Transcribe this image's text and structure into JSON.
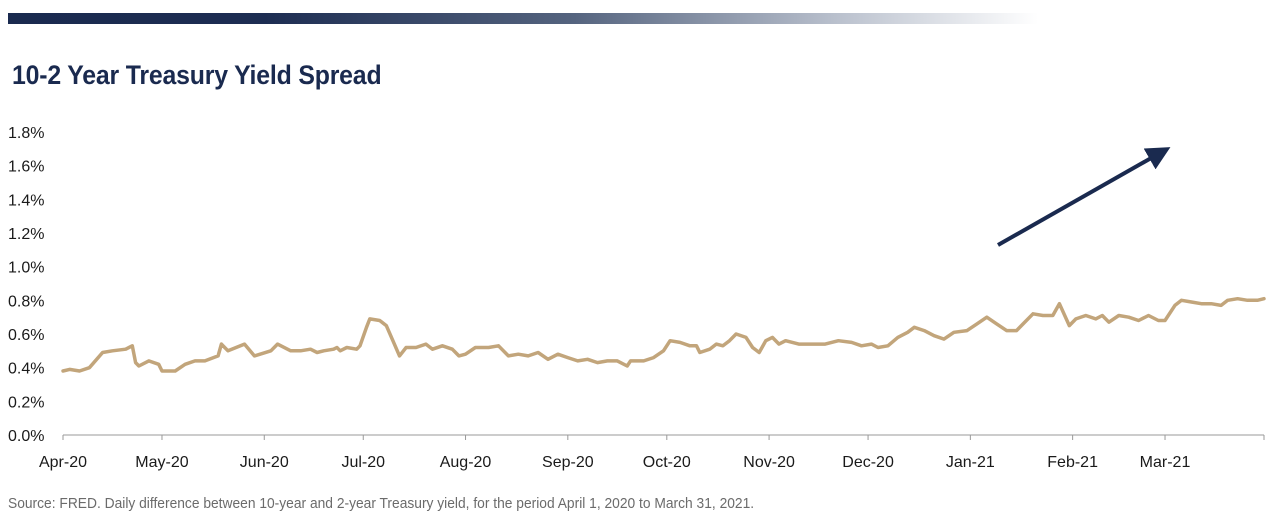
{
  "title": "10-2 Year Treasury Yield Spread",
  "source": "Source: FRED. Daily difference between 10-year and 2-year Treasury yield, for the period April 1, 2020 to March 31, 2021.",
  "colors": {
    "line": "#c2a57b",
    "arrow": "#1a2a4f",
    "title": "#1a2a4f",
    "axis": "#999999"
  },
  "chart_data": {
    "type": "line",
    "title": "10-2 Year Treasury Yield Spread",
    "xlabel": "",
    "ylabel": "",
    "ylim": [
      0,
      1.8
    ],
    "grid": false,
    "y_ticks": [
      "0.0%",
      "0.2%",
      "0.4%",
      "0.6%",
      "0.8%",
      "1.0%",
      "1.2%",
      "1.4%",
      "1.6%",
      "1.8%"
    ],
    "x_ticks": [
      {
        "label": "Apr-20",
        "date": "2020-04-01"
      },
      {
        "label": "May-20",
        "date": "2020-05-01"
      },
      {
        "label": "Jun-20",
        "date": "2020-06-01"
      },
      {
        "label": "Jul-20",
        "date": "2020-07-01"
      },
      {
        "label": "Aug-20",
        "date": "2020-08-01"
      },
      {
        "label": "Sep-20",
        "date": "2020-09-01"
      },
      {
        "label": "Oct-20",
        "date": "2020-10-01"
      },
      {
        "label": "Nov-20",
        "date": "2020-11-01"
      },
      {
        "label": "Dec-20",
        "date": "2020-12-01"
      },
      {
        "label": "Jan-21",
        "date": "2021-01-01"
      },
      {
        "label": "Feb-21",
        "date": "2021-02-01"
      },
      {
        "label": "Mar-21",
        "date": "2021-03-01"
      }
    ],
    "xlim": [
      "2020-04-01",
      "2021-03-31"
    ],
    "series": [
      {
        "values": [
          [
            "2020-04-01",
            0.38
          ],
          [
            "2020-04-03",
            0.39
          ],
          [
            "2020-04-06",
            0.38
          ],
          [
            "2020-04-09",
            0.4
          ],
          [
            "2020-04-13",
            0.49
          ],
          [
            "2020-04-16",
            0.5
          ],
          [
            "2020-04-20",
            0.51
          ],
          [
            "2020-04-22",
            0.53
          ],
          [
            "2020-04-23",
            0.43
          ],
          [
            "2020-04-24",
            0.41
          ],
          [
            "2020-04-27",
            0.44
          ],
          [
            "2020-04-30",
            0.42
          ],
          [
            "2020-05-01",
            0.38
          ],
          [
            "2020-05-05",
            0.38
          ],
          [
            "2020-05-08",
            0.42
          ],
          [
            "2020-05-11",
            0.44
          ],
          [
            "2020-05-14",
            0.44
          ],
          [
            "2020-05-18",
            0.47
          ],
          [
            "2020-05-19",
            0.54
          ],
          [
            "2020-05-21",
            0.5
          ],
          [
            "2020-05-26",
            0.54
          ],
          [
            "2020-05-29",
            0.47
          ],
          [
            "2020-06-03",
            0.5
          ],
          [
            "2020-06-05",
            0.54
          ],
          [
            "2020-06-09",
            0.5
          ],
          [
            "2020-06-12",
            0.5
          ],
          [
            "2020-06-15",
            0.51
          ],
          [
            "2020-06-17",
            0.49
          ],
          [
            "2020-06-19",
            0.5
          ],
          [
            "2020-06-22",
            0.51
          ],
          [
            "2020-06-23",
            0.52
          ],
          [
            "2020-06-24",
            0.5
          ],
          [
            "2020-06-26",
            0.52
          ],
          [
            "2020-06-29",
            0.51
          ],
          [
            "2020-06-30",
            0.53
          ],
          [
            "2020-07-02",
            0.64
          ],
          [
            "2020-07-03",
            0.69
          ],
          [
            "2020-07-06",
            0.68
          ],
          [
            "2020-07-08",
            0.65
          ],
          [
            "2020-07-10",
            0.56
          ],
          [
            "2020-07-12",
            0.47
          ],
          [
            "2020-07-14",
            0.52
          ],
          [
            "2020-07-17",
            0.52
          ],
          [
            "2020-07-20",
            0.54
          ],
          [
            "2020-07-22",
            0.51
          ],
          [
            "2020-07-25",
            0.53
          ],
          [
            "2020-07-28",
            0.51
          ],
          [
            "2020-07-30",
            0.47
          ],
          [
            "2020-08-01",
            0.48
          ],
          [
            "2020-08-04",
            0.52
          ],
          [
            "2020-08-08",
            0.52
          ],
          [
            "2020-08-11",
            0.53
          ],
          [
            "2020-08-14",
            0.47
          ],
          [
            "2020-08-17",
            0.48
          ],
          [
            "2020-08-20",
            0.47
          ],
          [
            "2020-08-23",
            0.49
          ],
          [
            "2020-08-26",
            0.45
          ],
          [
            "2020-08-29",
            0.48
          ],
          [
            "2020-09-01",
            0.46
          ],
          [
            "2020-09-04",
            0.44
          ],
          [
            "2020-09-07",
            0.45
          ],
          [
            "2020-09-10",
            0.43
          ],
          [
            "2020-09-13",
            0.44
          ],
          [
            "2020-09-16",
            0.44
          ],
          [
            "2020-09-19",
            0.41
          ],
          [
            "2020-09-20",
            0.44
          ],
          [
            "2020-09-24",
            0.44
          ],
          [
            "2020-09-27",
            0.46
          ],
          [
            "2020-09-30",
            0.5
          ],
          [
            "2020-10-02",
            0.56
          ],
          [
            "2020-10-05",
            0.55
          ],
          [
            "2020-10-08",
            0.53
          ],
          [
            "2020-10-10",
            0.53
          ],
          [
            "2020-10-11",
            0.49
          ],
          [
            "2020-10-14",
            0.51
          ],
          [
            "2020-10-16",
            0.54
          ],
          [
            "2020-10-18",
            0.53
          ],
          [
            "2020-10-20",
            0.56
          ],
          [
            "2020-10-22",
            0.6
          ],
          [
            "2020-10-25",
            0.58
          ],
          [
            "2020-10-27",
            0.52
          ],
          [
            "2020-10-29",
            0.49
          ],
          [
            "2020-10-31",
            0.56
          ],
          [
            "2020-11-02",
            0.58
          ],
          [
            "2020-11-04",
            0.54
          ],
          [
            "2020-11-06",
            0.56
          ],
          [
            "2020-11-10",
            0.54
          ],
          [
            "2020-11-14",
            0.54
          ],
          [
            "2020-11-18",
            0.54
          ],
          [
            "2020-11-22",
            0.56
          ],
          [
            "2020-11-26",
            0.55
          ],
          [
            "2020-11-29",
            0.53
          ],
          [
            "2020-12-02",
            0.54
          ],
          [
            "2020-12-04",
            0.52
          ],
          [
            "2020-12-07",
            0.53
          ],
          [
            "2020-12-10",
            0.58
          ],
          [
            "2020-12-13",
            0.61
          ],
          [
            "2020-12-15",
            0.64
          ],
          [
            "2020-12-18",
            0.62
          ],
          [
            "2020-12-21",
            0.59
          ],
          [
            "2020-12-24",
            0.57
          ],
          [
            "2020-12-27",
            0.61
          ],
          [
            "2020-12-31",
            0.62
          ],
          [
            "2021-01-03",
            0.66
          ],
          [
            "2021-01-06",
            0.7
          ],
          [
            "2021-01-09",
            0.66
          ],
          [
            "2021-01-12",
            0.62
          ],
          [
            "2021-01-15",
            0.62
          ],
          [
            "2021-01-17",
            0.66
          ],
          [
            "2021-01-20",
            0.72
          ],
          [
            "2021-01-23",
            0.71
          ],
          [
            "2021-01-26",
            0.71
          ],
          [
            "2021-01-28",
            0.78
          ],
          [
            "2021-01-31",
            0.65
          ],
          [
            "2021-02-02",
            0.69
          ],
          [
            "2021-02-05",
            0.71
          ],
          [
            "2021-02-08",
            0.69
          ],
          [
            "2021-02-10",
            0.71
          ],
          [
            "2021-02-12",
            0.67
          ],
          [
            "2021-02-15",
            0.71
          ],
          [
            "2021-02-18",
            0.7
          ],
          [
            "2021-02-21",
            0.68
          ],
          [
            "2021-02-24",
            0.71
          ],
          [
            "2021-02-27",
            0.68
          ],
          [
            "2021-03-01",
            0.68
          ],
          [
            "2021-03-04",
            0.77
          ],
          [
            "2021-03-06",
            0.8
          ],
          [
            "2021-03-09",
            0.79
          ],
          [
            "2021-03-12",
            0.78
          ],
          [
            "2021-03-15",
            0.78
          ],
          [
            "2021-03-18",
            0.77
          ],
          [
            "2021-03-20",
            0.8
          ],
          [
            "2021-03-23",
            0.81
          ],
          [
            "2021-03-26",
            0.8
          ],
          [
            "2021-03-29",
            0.8
          ],
          [
            "2021-03-31",
            0.81
          ]
        ]
      }
    ]
  }
}
